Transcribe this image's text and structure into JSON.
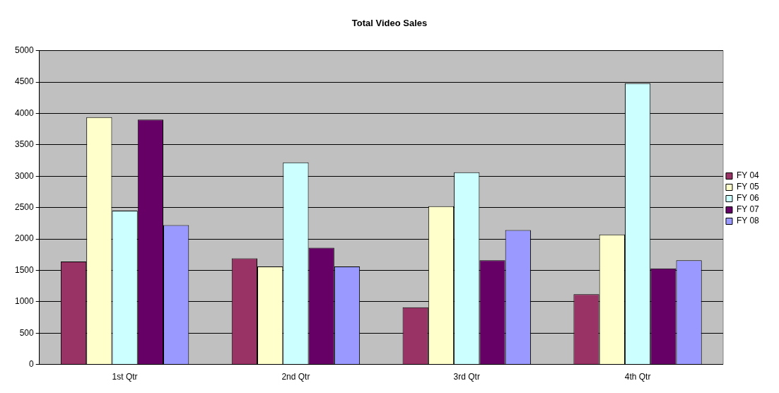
{
  "chart_data": {
    "type": "bar",
    "title": "Total Video Sales",
    "categories": [
      "1st Qtr",
      "2nd Qtr",
      "3rd Qtr",
      "4th Qtr"
    ],
    "series": [
      {
        "name": "FY 04",
        "color": "#993366",
        "values": [
          1640,
          1690,
          910,
          1120
        ]
      },
      {
        "name": "FY 05",
        "color": "#ffffcc",
        "values": [
          3940,
          1560,
          2520,
          2070
        ]
      },
      {
        "name": "FY 06",
        "color": "#ccffff",
        "values": [
          2450,
          3220,
          3060,
          4480
        ]
      },
      {
        "name": "FY 07",
        "color": "#660066",
        "values": [
          3900,
          1860,
          1660,
          1530
        ]
      },
      {
        "name": "FY 08",
        "color": "#9999ff",
        "values": [
          2220,
          1560,
          2140,
          1660
        ]
      }
    ],
    "ylim": [
      0,
      5000
    ],
    "yticks": [
      0,
      500,
      1000,
      1500,
      2000,
      2500,
      3000,
      3500,
      4000,
      4500,
      5000
    ],
    "grid": "y",
    "legend": "right"
  }
}
